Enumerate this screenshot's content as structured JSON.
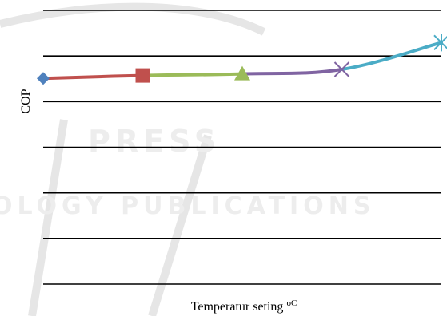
{
  "chart_data": {
    "type": "line",
    "xlabel": "Temperatur seting",
    "xlabel_unit": "oC",
    "ylabel": "COP",
    "grid": true,
    "gridline_count": 7,
    "points": [
      {
        "index": 0,
        "value": 3.0,
        "marker": "diamond",
        "color": "#4f81bd"
      },
      {
        "index": 1,
        "value": 3.16,
        "marker": "square",
        "color": "#c0504d"
      },
      {
        "index": 2,
        "value": 3.25,
        "marker": "triangle",
        "color": "#9bbb59"
      },
      {
        "index": 3,
        "value": 3.5,
        "marker": "x",
        "color": "#8064a2"
      },
      {
        "index": 4,
        "value": 5.0,
        "marker": "star",
        "color": "#4bacc6"
      }
    ],
    "segment_colors": [
      "#c0504d",
      "#9bbb59",
      "#8064a2",
      "#4bacc6"
    ],
    "yrange": [
      -8.5,
      6.8
    ]
  },
  "watermark": {
    "text_top": "PRESS",
    "text_mid": "OLOGY PUBLICATIONS"
  }
}
